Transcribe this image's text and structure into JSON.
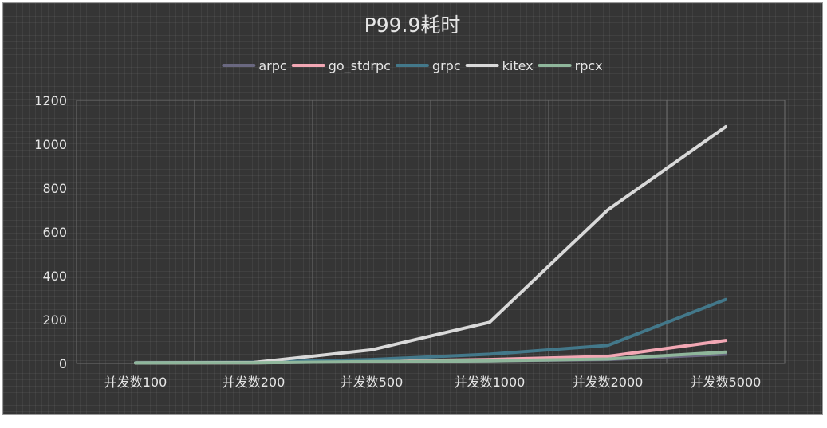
{
  "chart_data": {
    "type": "line",
    "title": "P99.9耗时",
    "categories": [
      "并发数100",
      "并发数200",
      "并发数500",
      "并发数1000",
      "并发数2000",
      "并发数5000"
    ],
    "ylim": [
      0,
      1200
    ],
    "yticks": [
      0,
      200,
      400,
      600,
      800,
      1000,
      1200
    ],
    "grid": true,
    "legend_position": "top",
    "series": [
      {
        "name": "arpc",
        "color": "#6a6880",
        "values": [
          2,
          3,
          8,
          12,
          18,
          42
        ]
      },
      {
        "name": "go_stdrpc",
        "color": "#f2a7b4",
        "values": [
          2,
          3,
          10,
          18,
          32,
          105
        ]
      },
      {
        "name": "grpc",
        "color": "#43788a",
        "values": [
          3,
          5,
          18,
          42,
          82,
          292
        ]
      },
      {
        "name": "kitex",
        "color": "#d9d9d9",
        "values": [
          2,
          4,
          62,
          188,
          700,
          1080
        ]
      },
      {
        "name": "rpcx",
        "color": "#8fb69b",
        "values": [
          2,
          3,
          8,
          12,
          20,
          52
        ]
      }
    ]
  }
}
